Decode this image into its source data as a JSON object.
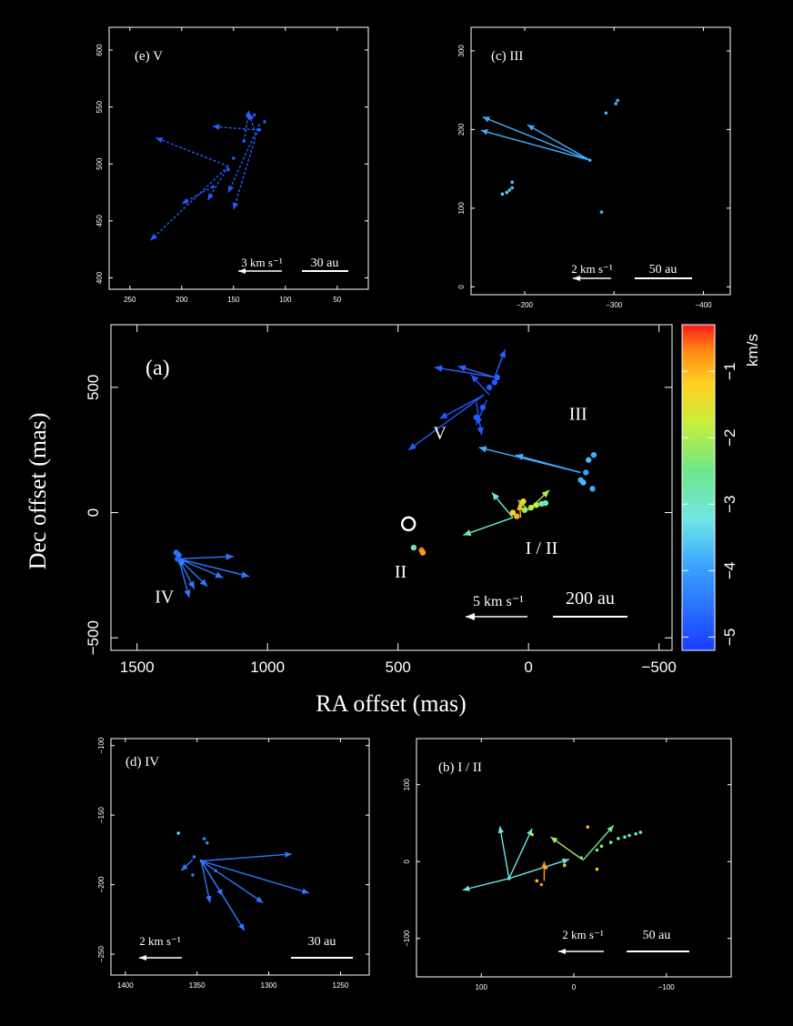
{
  "colorbar": {
    "label": "km/s",
    "ticks": [
      "−1",
      "−2",
      "−3",
      "−4",
      "−5"
    ],
    "min": -5.2,
    "max": -0.3
  },
  "chart_data": [
    {
      "id": "a",
      "type": "scatter",
      "title": "(a)",
      "xlabel": "RA offset (mas)",
      "ylabel": "Dec offset (mas)",
      "xlim": [
        1600,
        -550
      ],
      "ylim": [
        -550,
        750
      ],
      "xticks": [
        1500,
        1000,
        500,
        0,
        -500
      ],
      "xtick_labels": [
        "1500",
        "1000",
        "500",
        "0",
        "−500"
      ],
      "yticks": [
        500,
        0,
        -500
      ],
      "ytick_labels": [
        "500",
        "0",
        "−500"
      ],
      "region_labels": [
        {
          "text": "V",
          "x": 340,
          "y": 295
        },
        {
          "text": "III",
          "x": -190,
          "y": 370
        },
        {
          "text": "I / II",
          "x": -50,
          "y": -165
        },
        {
          "text": "II",
          "x": 490,
          "y": -260
        },
        {
          "text": "IV",
          "x": 1395,
          "y": -360
        }
      ],
      "reference_circle": {
        "x": 460,
        "y": -45
      },
      "scale_velocity": "5 km s⁻¹",
      "scale_length": "200 au",
      "points": [
        {
          "x": 1350,
          "y": -160,
          "v": -4.7
        },
        {
          "x": 1340,
          "y": -170,
          "v": -4.6
        },
        {
          "x": 1345,
          "y": -185,
          "v": -4.8
        },
        {
          "x": 1330,
          "y": -200,
          "v": -4.5
        },
        {
          "x": 130,
          "y": 520,
          "v": -4.9
        },
        {
          "x": 120,
          "y": 540,
          "v": -4.8
        },
        {
          "x": 150,
          "y": 500,
          "v": -4.9
        },
        {
          "x": 175,
          "y": 420,
          "v": -4.9
        },
        {
          "x": 200,
          "y": 380,
          "v": -4.9
        },
        {
          "x": -250,
          "y": 230,
          "v": -4.1
        },
        {
          "x": -230,
          "y": 210,
          "v": -4.0
        },
        {
          "x": -220,
          "y": 160,
          "v": -4.2
        },
        {
          "x": -200,
          "y": 130,
          "v": -4.1
        },
        {
          "x": -210,
          "y": 120,
          "v": -4.0
        },
        {
          "x": -245,
          "y": 95,
          "v": -4.1
        },
        {
          "x": 15,
          "y": 10,
          "v": -2.6
        },
        {
          "x": -10,
          "y": 20,
          "v": -2.4
        },
        {
          "x": -30,
          "y": 30,
          "v": -2.3
        },
        {
          "x": -50,
          "y": 35,
          "v": -3.3
        },
        {
          "x": -65,
          "y": 38,
          "v": -3.4
        },
        {
          "x": 20,
          "y": 45,
          "v": -1.7
        },
        {
          "x": 45,
          "y": -15,
          "v": -1.3
        },
        {
          "x": 60,
          "y": 0,
          "v": -1.6
        },
        {
          "x": 440,
          "y": -140,
          "v": -3.3
        },
        {
          "x": 410,
          "y": -150,
          "v": -0.9
        },
        {
          "x": 405,
          "y": -160,
          "v": -1.2
        }
      ],
      "vectors": [
        {
          "x0": 1340,
          "y0": -185,
          "dx": -210,
          "dy": 10,
          "v": -4.6
        },
        {
          "x0": 1340,
          "y0": -185,
          "dx": -270,
          "dy": -70,
          "v": -4.6
        },
        {
          "x0": 1340,
          "y0": -185,
          "dx": -170,
          "dy": -75,
          "v": -4.6
        },
        {
          "x0": 1340,
          "y0": -185,
          "dx": -60,
          "dy": -120,
          "v": -4.6
        },
        {
          "x0": 1340,
          "y0": -185,
          "dx": -40,
          "dy": -155,
          "v": -4.6
        },
        {
          "x0": 1340,
          "y0": -185,
          "dx": -110,
          "dy": -110,
          "v": -4.6
        },
        {
          "x0": 130,
          "y0": 540,
          "dx": 230,
          "dy": 40,
          "v": -4.8
        },
        {
          "x0": 130,
          "y0": 540,
          "dx": 140,
          "dy": 45,
          "v": -4.8
        },
        {
          "x0": 130,
          "y0": 540,
          "dx": -40,
          "dy": 110,
          "v": -4.8
        },
        {
          "x0": 170,
          "y0": 470,
          "dx": 290,
          "dy": -220,
          "v": -4.9
        },
        {
          "x0": 170,
          "y0": 470,
          "dx": 170,
          "dy": -95,
          "v": -4.9
        },
        {
          "x0": 200,
          "y0": 440,
          "dx": -20,
          "dy": -130,
          "v": -4.9
        },
        {
          "x0": 160,
          "y0": 450,
          "dx": 40,
          "dy": -100,
          "v": -4.9
        },
        {
          "x0": 150,
          "y0": 470,
          "dx": 70,
          "dy": 80,
          "v": -4.9
        },
        {
          "x0": -200,
          "y0": 160,
          "dx": 390,
          "dy": 100,
          "v": -4.1
        },
        {
          "x0": -200,
          "y0": 160,
          "dx": 250,
          "dy": 70,
          "v": -4.1
        },
        {
          "x0": 60,
          "y0": -20,
          "dx": 190,
          "dy": -70,
          "v": -3.4
        },
        {
          "x0": 60,
          "y0": -20,
          "dx": 80,
          "dy": 100,
          "v": -3.5
        },
        {
          "x0": 0,
          "y0": 10,
          "dx": -80,
          "dy": 80,
          "v": -2.5
        },
        {
          "x0": 0,
          "y0": 10,
          "dx": 40,
          "dy": 40,
          "v": -2.7
        },
        {
          "x0": 30,
          "y0": -20,
          "dx": 5,
          "dy": 60,
          "v": -1.4
        }
      ]
    },
    {
      "id": "e",
      "type": "scatter",
      "title": "(e)  V",
      "xlim": [
        270,
        20
      ],
      "ylim": [
        390,
        620
      ],
      "xticks": [
        250,
        200,
        150,
        100,
        50
      ],
      "xtick_labels": [
        "250",
        "200",
        "150",
        "100",
        "50"
      ],
      "yticks": [
        400,
        450,
        500,
        550,
        600
      ],
      "ytick_labels": [
        "400",
        "450",
        "500",
        "550",
        "600"
      ],
      "scale_velocity": "3 km s⁻¹",
      "scale_length": "30 au",
      "points": [
        {
          "x": 120,
          "y": 537,
          "v": -4.9
        },
        {
          "x": 130,
          "y": 543,
          "v": -4.9
        },
        {
          "x": 125,
          "y": 530,
          "v": -4.8
        },
        {
          "x": 140,
          "y": 520,
          "v": -4.9
        },
        {
          "x": 150,
          "y": 505,
          "v": -4.9
        },
        {
          "x": 155,
          "y": 495,
          "v": -4.9
        },
        {
          "x": 170,
          "y": 480,
          "v": -4.9
        }
      ],
      "vectors": [
        {
          "x0": 155,
          "y0": 498,
          "dx": 70,
          "dy": 25,
          "v": -4.9
        },
        {
          "x0": 130,
          "y0": 530,
          "dx": 40,
          "dy": 3,
          "v": -4.8
        },
        {
          "x0": 130,
          "y0": 530,
          "dx": 5,
          "dy": 15,
          "v": -4.8
        },
        {
          "x0": 140,
          "y0": 520,
          "dx": -5,
          "dy": 27,
          "v": -4.8
        },
        {
          "x0": 155,
          "y0": 498,
          "dx": 75,
          "dy": -65,
          "v": -4.9
        },
        {
          "x0": 155,
          "y0": 498,
          "dx": 20,
          "dy": -30,
          "v": -4.9
        },
        {
          "x0": 125,
          "y0": 535,
          "dx": 30,
          "dy": -60,
          "v": -4.9
        },
        {
          "x0": 125,
          "y0": 535,
          "dx": 25,
          "dy": -75,
          "v": -4.9
        },
        {
          "x0": 170,
          "y0": 480,
          "dx": 30,
          "dy": -15,
          "v": -4.9
        }
      ]
    },
    {
      "id": "c",
      "type": "scatter",
      "title": "(c)  III",
      "xlim": [
        -140,
        -430
      ],
      "ylim": [
        -10,
        330
      ],
      "xticks": [
        -200,
        -300,
        -400
      ],
      "xtick_labels": [
        "−200",
        "−300",
        "−400"
      ],
      "yticks": [
        0,
        100,
        200,
        300
      ],
      "ytick_labels": [
        "0",
        "100",
        "200",
        "300"
      ],
      "scale_velocity": "2 km s⁻¹",
      "scale_length": "50 au",
      "points": [
        {
          "x": -273,
          "y": 161,
          "v": -4.1
        },
        {
          "x": -302,
          "y": 233,
          "v": -4.0
        },
        {
          "x": -304,
          "y": 237,
          "v": -4.0
        },
        {
          "x": -291,
          "y": 221,
          "v": -4.1
        },
        {
          "x": -175,
          "y": 118,
          "v": -3.8
        },
        {
          "x": -180,
          "y": 120,
          "v": -3.8
        },
        {
          "x": -183,
          "y": 123,
          "v": -3.9
        },
        {
          "x": -186,
          "y": 126,
          "v": -3.9
        },
        {
          "x": -186,
          "y": 133,
          "v": -3.9
        },
        {
          "x": -286,
          "y": 95,
          "v": -4.0
        }
      ],
      "vectors": [
        {
          "x0": -273,
          "y0": 161,
          "dx": 120,
          "dy": 55,
          "v": -4.1
        },
        {
          "x0": -273,
          "y0": 161,
          "dx": 122,
          "dy": 38,
          "v": -4.1
        },
        {
          "x0": -273,
          "y0": 161,
          "dx": 70,
          "dy": 45,
          "v": -4.1
        }
      ]
    },
    {
      "id": "d",
      "type": "scatter",
      "title": "(d)  IV",
      "xlim": [
        1410,
        1230
      ],
      "ylim": [
        -265,
        -95
      ],
      "xticks": [
        1400,
        1350,
        1300,
        1250
      ],
      "xtick_labels": [
        "1400",
        "1350",
        "1300",
        "1250"
      ],
      "yticks": [
        -100,
        -150,
        -200,
        -250
      ],
      "ytick_labels": [
        "−100",
        "−150",
        "−200",
        "−250"
      ],
      "scale_velocity": "2 km s⁻¹",
      "scale_length": "30 au",
      "points": [
        {
          "x": 1363,
          "y": -163,
          "v": -3.8
        },
        {
          "x": 1345,
          "y": -167,
          "v": -4.5
        },
        {
          "x": 1343,
          "y": -170,
          "v": -4.5
        },
        {
          "x": 1352,
          "y": -180,
          "v": -4.6
        },
        {
          "x": 1347,
          "y": -183,
          "v": -4.6
        },
        {
          "x": 1337,
          "y": -190,
          "v": -4.6
        },
        {
          "x": 1353,
          "y": -193,
          "v": -4.6
        }
      ],
      "vectors": [
        {
          "x0": 1347,
          "y0": -183,
          "dx": -63,
          "dy": 5,
          "v": -4.6
        },
        {
          "x0": 1347,
          "y0": -183,
          "dx": -75,
          "dy": -23,
          "v": -4.6
        },
        {
          "x0": 1347,
          "y0": -183,
          "dx": -43,
          "dy": -30,
          "v": -4.6
        },
        {
          "x0": 1347,
          "y0": -183,
          "dx": -30,
          "dy": -50,
          "v": -4.6
        },
        {
          "x0": 1347,
          "y0": -183,
          "dx": -15,
          "dy": -25,
          "v": -4.6
        },
        {
          "x0": 1347,
          "y0": -183,
          "dx": -6,
          "dy": -30,
          "v": -4.6
        },
        {
          "x0": 1353,
          "y0": -182,
          "dx": 8,
          "dy": -8,
          "v": -4.6
        }
      ]
    },
    {
      "id": "b",
      "type": "scatter",
      "title": "(b)  I / II",
      "xlim": [
        170,
        -170
      ],
      "ylim": [
        -150,
        160
      ],
      "xticks": [
        100,
        0,
        -100
      ],
      "xtick_labels": [
        "100",
        "0",
        "−100"
      ],
      "yticks": [
        100,
        0,
        -100
      ],
      "ytick_labels": [
        "100",
        "0",
        "−100"
      ],
      "scale_velocity": "2 km s⁻¹",
      "scale_length": "50 au",
      "points": [
        {
          "x": 70,
          "y": -22,
          "v": -3.6
        },
        {
          "x": -8,
          "y": 5,
          "v": -3.0
        },
        {
          "x": -25,
          "y": 15,
          "v": -3.0
        },
        {
          "x": -30,
          "y": 20,
          "v": -2.7
        },
        {
          "x": -40,
          "y": 25,
          "v": -3.3
        },
        {
          "x": -48,
          "y": 30,
          "v": -3.3
        },
        {
          "x": -55,
          "y": 32,
          "v": -3.3
        },
        {
          "x": -60,
          "y": 34,
          "v": -3.3
        },
        {
          "x": -67,
          "y": 36,
          "v": -3.3
        },
        {
          "x": -72,
          "y": 38,
          "v": -3.3
        },
        {
          "x": 45,
          "y": 35,
          "v": -1.4
        },
        {
          "x": 30,
          "y": -8,
          "v": -1.3
        },
        {
          "x": -15,
          "y": 45,
          "v": -1.4
        },
        {
          "x": -25,
          "y": -10,
          "v": -1.5
        },
        {
          "x": 35,
          "y": -30,
          "v": -1.0
        },
        {
          "x": 40,
          "y": -25,
          "v": -1.4
        },
        {
          "x": 10,
          "y": -5,
          "v": -2.5
        }
      ],
      "vectors": [
        {
          "x0": 70,
          "y0": -22,
          "dx": 50,
          "dy": -15,
          "v": -3.6
        },
        {
          "x0": 70,
          "y0": -22,
          "dx": 10,
          "dy": 68,
          "v": -3.6
        },
        {
          "x0": 70,
          "y0": -22,
          "dx": -25,
          "dy": 65,
          "v": -3.6
        },
        {
          "x0": 70,
          "y0": -22,
          "dx": -65,
          "dy": 25,
          "v": -3.5
        },
        {
          "x0": -10,
          "y0": 2,
          "dx": 35,
          "dy": 30,
          "v": -2.6
        },
        {
          "x0": -10,
          "y0": 2,
          "dx": -33,
          "dy": 45,
          "v": -3.0
        },
        {
          "x0": 32,
          "y0": -25,
          "dx": 0,
          "dy": 25,
          "v": -1.2
        }
      ]
    }
  ]
}
